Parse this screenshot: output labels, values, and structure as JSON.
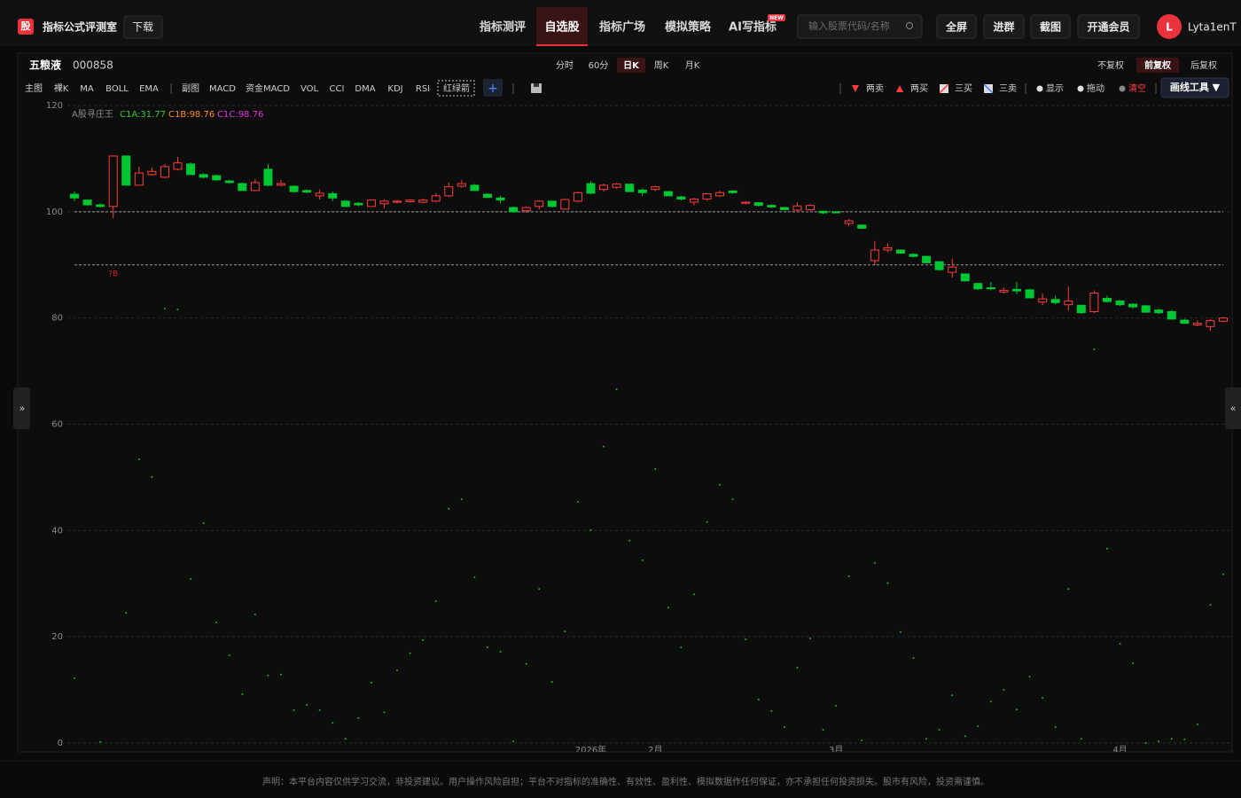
{
  "header": {
    "logo": "股",
    "title": "指标公式评测室",
    "download": "下载",
    "nav": [
      "指标测评",
      "自选股",
      "指标广场",
      "模拟策略",
      "AI写指标"
    ],
    "active_nav": 1,
    "new_badge": "NEW",
    "search_placeholder": "输入股票代码/名称",
    "buttons": [
      "全屏",
      "进群",
      "截图",
      "开通会员"
    ],
    "avatar": "L",
    "user": "Lyta1enT"
  },
  "stock": {
    "name": "五粮液",
    "code": "000858",
    "periods": [
      "分时",
      "60分",
      "日K",
      "周K",
      "月K"
    ],
    "active_period": 2,
    "adjust": [
      "不复权",
      "前复权",
      "后复权"
    ],
    "active_adjust": 1
  },
  "toolbar": {
    "main": [
      "主图",
      "裸K",
      "MA",
      "BOLL",
      "EMA"
    ],
    "sub": [
      "副图",
      "MACD",
      "资金MACD",
      "VOL",
      "CCI",
      "DMA",
      "KDJ",
      "RSI",
      "红绿箭"
    ],
    "add": "+",
    "signals": [
      "两卖",
      "两买",
      "三买",
      "三卖"
    ],
    "tools": [
      "显示",
      "拖动",
      "清空"
    ],
    "draw": "画线工具 ▼"
  },
  "side": {
    "expand": "»",
    "collapse": "«"
  },
  "chart_data": {
    "type": "candlestick",
    "legend": [
      {
        "label": "A股寻庄王",
        "color": "#8a8a8a"
      },
      {
        "label": "C1A:31.77",
        "color": "#2ecc2e"
      },
      {
        "label": "C1B:98.76",
        "color": "#ff8c1a"
      },
      {
        "label": "C1C:98.76",
        "color": "#e030e0"
      }
    ],
    "annotation": "?B",
    "categories": [
      null,
      null,
      null,
      null,
      null,
      null,
      null,
      null,
      null,
      null,
      null,
      null,
      null,
      null,
      null,
      null,
      null,
      null,
      null,
      null,
      null,
      null,
      null,
      null,
      null,
      null,
      null,
      null,
      null,
      null,
      null,
      null,
      null,
      null,
      null,
      null,
      null,
      null,
      null,
      null,
      "2026年",
      null,
      null,
      null,
      null,
      "2月",
      null,
      null,
      null,
      null,
      null,
      null,
      null,
      null,
      null,
      null,
      null,
      null,
      null,
      "3月",
      null,
      null,
      null,
      null,
      null,
      null,
      null,
      null,
      null,
      null,
      null,
      null,
      null,
      null,
      null,
      null,
      null,
      null,
      null,
      null,
      null,
      "4月",
      null,
      null,
      null,
      null,
      null,
      null,
      null,
      null
    ],
    "open": [
      103.3,
      102.2,
      101.3,
      101,
      110.5,
      105,
      107,
      106.5,
      108,
      109,
      107,
      106.8,
      105.8,
      105.3,
      104,
      108,
      105,
      104.8,
      104,
      103,
      103.4,
      102,
      101.6,
      101,
      101.5,
      101.8,
      101.9,
      101.8,
      102,
      103,
      104.8,
      105,
      103.3,
      102.6,
      100.8,
      100.2,
      101,
      102,
      100.5,
      102,
      105.3,
      104.2,
      104.6,
      105.2,
      104.1,
      104.2,
      103.8,
      102.8,
      101.8,
      102.4,
      103,
      103.9,
      101.6,
      101.7,
      101.2,
      100.8,
      100.3,
      100.4,
      100.1,
      100,
      97.8,
      97.5,
      90.8,
      92.8,
      92.8,
      92,
      91.6,
      90.6,
      88.6,
      88.3,
      86.5,
      85.7,
      84.9,
      85.4,
      85.3,
      83,
      83.5,
      82.5,
      82.4,
      81.2,
      83.7,
      83.2,
      82.6,
      82.3,
      81.5,
      81.2,
      79.6,
      78.7,
      78.4,
      79.4
    ],
    "close": [
      102.6,
      101.3,
      101,
      110.5,
      105,
      107.3,
      107.6,
      108.5,
      109.2,
      107,
      106.5,
      106,
      105.5,
      104,
      105.5,
      105,
      105.3,
      103.8,
      103.7,
      103.5,
      102.6,
      101,
      101.3,
      102.2,
      102,
      102,
      102.2,
      102.2,
      103,
      104.7,
      105.3,
      104,
      102.7,
      102.2,
      100,
      100.8,
      102,
      101,
      102.3,
      103.6,
      103.5,
      105,
      105.2,
      103.8,
      103.6,
      104.7,
      103,
      102.4,
      102.4,
      103.4,
      103.6,
      103.6,
      101.8,
      101.2,
      100.9,
      100.4,
      101.1,
      101.2,
      99.8,
      99.8,
      98.3,
      96.9,
      92.8,
      93.2,
      92.2,
      91.6,
      90.4,
      89.1,
      89.6,
      87,
      85.5,
      85.5,
      85.2,
      85.1,
      83.8,
      83.6,
      82.9,
      83.2,
      81,
      84.7,
      83.1,
      82.5,
      82.1,
      81.1,
      81,
      79.8,
      79,
      79,
      79.5,
      80
    ],
    "high": [
      103.8,
      102.3,
      101.6,
      110.6,
      110.6,
      108.5,
      108.3,
      109,
      110.3,
      109.3,
      107.3,
      107,
      106,
      105.5,
      106.2,
      109,
      106,
      105,
      104.2,
      104.2,
      103.8,
      102.2,
      101.8,
      102.3,
      102.3,
      102.2,
      102.3,
      102.5,
      103.5,
      105.5,
      106,
      105.2,
      103.5,
      103,
      101,
      101,
      102.2,
      102,
      102.5,
      103.8,
      105.8,
      105.3,
      105.4,
      105.2,
      104.4,
      104.9,
      103.9,
      103,
      102.6,
      103.5,
      104,
      104.1,
      102,
      101.8,
      101.4,
      100.9,
      101.8,
      101.4,
      100.2,
      100.1,
      98.6,
      97.6,
      94.5,
      94,
      92.9,
      92.2,
      91.7,
      90.7,
      91.2,
      88.3,
      86.6,
      86.8,
      85.7,
      86.8,
      85.5,
      84.6,
      84.2,
      85.9,
      82.5,
      85.2,
      84.2,
      83.4,
      82.8,
      82.5,
      81.8,
      81.5,
      79.9,
      79.5,
      79.8,
      80.2
    ],
    "low": [
      102,
      101.2,
      100.8,
      98.8,
      105,
      105,
      106.8,
      106.3,
      107.8,
      107,
      106.3,
      105.8,
      105.3,
      104,
      103.9,
      104.8,
      104.8,
      103.6,
      103.5,
      102.3,
      102,
      100.9,
      101,
      100.9,
      100.7,
      101.6,
      101.7,
      101.6,
      101.8,
      102.8,
      104.5,
      104,
      102.6,
      101.6,
      99.8,
      99.8,
      100.4,
      100.8,
      100.4,
      101.8,
      103.3,
      103.8,
      104.3,
      103.8,
      103,
      103.9,
      102.9,
      102.1,
      101.2,
      102.1,
      102.8,
      103.4,
      101.4,
      101,
      100.7,
      100.3,
      100.1,
      100.2,
      99.6,
      99.7,
      97.3,
      96.8,
      90,
      92.4,
      92.1,
      91.4,
      90.3,
      88.9,
      87.6,
      86.9,
      85.3,
      85.2,
      84.6,
      84.5,
      83.7,
      82.4,
      82.6,
      81.4,
      80.8,
      80.9,
      82.9,
      82.3,
      81.8,
      81,
      80.7,
      79.7,
      78.9,
      78.5,
      77.6,
      79.2
    ],
    "up_color": "#ff3b3b",
    "down_color": "#00c832",
    "indicator": {
      "color": "#1fb31f",
      "values": [
        12.2,
        null,
        0.2,
        null,
        24.5,
        53.4,
        50.1,
        81.8,
        81.6,
        30.9,
        41.4,
        22.7,
        16.5,
        9.2,
        24.2,
        12.7,
        12.9,
        6.2,
        7.2,
        6.2,
        3.8,
        0.8,
        4.7,
        11.4,
        5.8,
        13.7,
        16.9,
        19.4,
        26.7,
        44.1,
        45.9,
        31.2,
        18,
        17.2,
        0.3,
        14.9,
        29,
        11.5,
        21,
        45.4,
        40.1,
        55.8,
        66.6,
        38.1,
        34.4,
        51.6,
        25.5,
        18,
        28,
        41.6,
        48.6,
        45.9,
        19.5,
        8.2,
        6,
        3,
        14.2,
        19.7,
        2.5,
        7,
        31.4,
        0.5,
        33.9,
        30.1,
        20.9,
        16,
        0.8,
        2.5,
        9,
        1.3,
        3.2,
        7.8,
        10,
        6.3,
        12.5,
        8.5,
        3,
        29,
        0.8,
        74.1,
        36.6,
        18.7,
        15,
        0,
        0.3,
        0.8,
        0.7,
        3.5,
        26,
        31.77
      ]
    },
    "hlines": [
      100,
      90
    ],
    "ylim": [
      0,
      120
    ],
    "yticks": [
      0,
      20,
      40,
      60,
      80,
      100,
      120
    ],
    "grid": true
  },
  "footer": "声明：本平台内容仅供学习交流，非投资建议。用户操作风险自担；平台不对指标的准确性、有效性、盈利性、模拟数据作任何保证，亦不承担任何投资损失。股市有风险，投资需谨慎。"
}
